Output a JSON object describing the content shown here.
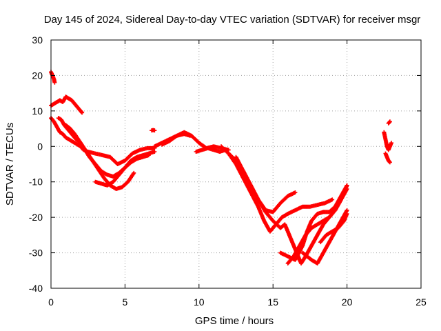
{
  "chart_data": {
    "type": "scatter",
    "title": "Day 145 of 2024, Sidereal Day-to-day VTEC variation (SDTVAR) for receiver msgr",
    "xlabel": "GPS time / hours",
    "ylabel": "SDTVAR / TECUs",
    "xlim": [
      0,
      25
    ],
    "ylim": [
      -40,
      30
    ],
    "xticks": [
      "0",
      "5",
      "10",
      "15",
      "20",
      "25"
    ],
    "yticks": [
      "30",
      "20",
      "10",
      "0",
      "-10",
      "-20",
      "-30",
      "-40"
    ],
    "grid": true,
    "marker_color": "#ff0000",
    "series": [
      {
        "x": [
          0.0,
          0.05,
          0.1,
          0.15,
          0.2,
          0.25
        ],
        "y": [
          21,
          20.5,
          20,
          19.5,
          19,
          18
        ]
      },
      {
        "x": [
          0.0,
          0.2,
          0.4,
          0.6,
          0.8,
          1.0,
          1.2,
          1.4,
          1.6,
          1.8,
          2.0,
          2.1
        ],
        "y": [
          11.5,
          12,
          12.5,
          13,
          12.5,
          14,
          13.5,
          13,
          12,
          11,
          10,
          9.5
        ]
      },
      {
        "x": [
          0.0,
          0.2,
          0.4,
          0.6,
          0.8,
          1.0,
          1.2,
          1.4,
          1.6,
          1.8,
          2.0,
          2.2,
          2.5,
          3.0,
          3.5,
          4.0,
          4.5,
          5.0,
          5.5,
          6.0,
          6.5,
          7.0
        ],
        "y": [
          8,
          7,
          5.5,
          4,
          3.5,
          2.5,
          2,
          1.5,
          1,
          0.5,
          0,
          -1,
          -1.5,
          -2,
          -2.5,
          -3,
          -5,
          -4,
          -2,
          -1,
          -0.5,
          -0.5
        ]
      },
      {
        "x": [
          0.5,
          0.7,
          0.9,
          1.1,
          1.3,
          1.5,
          1.7,
          2.0,
          2.3,
          2.6,
          3.0,
          3.4,
          3.8,
          4.2,
          4.6,
          5.0,
          5.4,
          5.8,
          6.2,
          6.6
        ],
        "y": [
          8,
          7.5,
          6,
          5,
          4,
          3,
          2,
          1,
          -1,
          -3,
          -5,
          -7,
          -8,
          -8.5,
          -7.5,
          -6,
          -4.5,
          -3.5,
          -3,
          -2.5
        ]
      },
      {
        "x": [
          1.0,
          1.3,
          1.6,
          2.0,
          2.4,
          2.8,
          3.2,
          3.6,
          4.0,
          4.4,
          4.8,
          5.2,
          5.6
        ],
        "y": [
          6,
          5,
          3.5,
          1,
          -1.5,
          -4,
          -6.5,
          -9,
          -11,
          -12,
          -11.5,
          -10,
          -7.5
        ]
      },
      {
        "x": [
          3.0,
          3.4,
          3.8,
          4.2,
          4.6,
          5.0,
          5.4,
          5.8,
          6.2,
          6.6,
          7.0
        ],
        "y": [
          -10,
          -10.5,
          -11,
          -10,
          -8,
          -6,
          -4,
          -3,
          -2.5,
          -2,
          -1.5
        ]
      },
      {
        "x": [
          6.8,
          6.9,
          7.0
        ],
        "y": [
          4.5,
          4.6,
          4.5
        ]
      },
      {
        "x": [
          7.0,
          7.5,
          8.0,
          8.5,
          9.0,
          9.5,
          10.0,
          10.5,
          11.0,
          11.5,
          12.0
        ],
        "y": [
          0,
          1,
          2,
          3,
          4,
          3,
          1,
          -0.5,
          0,
          -0.5,
          -1
        ]
      },
      {
        "x": [
          7.5,
          8.0,
          8.5,
          9.0,
          9.4
        ],
        "y": [
          0.5,
          1.5,
          3,
          3.5,
          3
        ]
      },
      {
        "x": [
          9.8,
          10.2,
          10.6,
          11.0,
          11.4,
          11.8
        ],
        "y": [
          -1.5,
          -1,
          -0.5,
          -1,
          -1.5,
          -1
        ]
      },
      {
        "x": [
          11.5,
          12.0,
          12.5,
          13.0,
          13.5,
          14.0,
          14.5,
          15.0,
          15.5,
          16.0,
          16.5
        ],
        "y": [
          0,
          -2,
          -4,
          -7,
          -11,
          -15,
          -18,
          -18.5,
          -16,
          -14,
          -13
        ]
      },
      {
        "x": [
          12.0,
          12.5,
          13.0,
          13.5,
          14.0,
          14.4,
          14.8,
          15.2,
          15.6,
          16.0,
          16.5,
          17.0,
          17.5,
          18.0,
          18.5,
          19.0
        ],
        "y": [
          -2,
          -5,
          -9,
          -13,
          -17,
          -21,
          -24,
          -22,
          -20,
          -19,
          -18,
          -17,
          -17,
          -16.5,
          -16,
          -15
        ]
      },
      {
        "x": [
          12.5,
          13.0,
          13.5,
          14.0,
          14.5,
          15.0,
          15.5,
          15.8,
          16.0,
          16.3,
          16.6,
          16.9,
          17.2,
          17.6,
          18.0,
          18.4,
          18.8,
          19.2,
          19.6,
          20.0
        ],
        "y": [
          -3,
          -7,
          -11,
          -15,
          -18.5,
          -21,
          -23,
          -22,
          -24,
          -27,
          -30,
          -33,
          -31,
          -28,
          -25,
          -22,
          -20,
          -18,
          -15,
          -11
        ]
      },
      {
        "x": [
          15.5,
          16.0,
          16.5,
          17.0,
          17.3,
          17.6,
          18.0,
          18.4,
          18.8,
          19.2,
          19.6,
          20.0
        ],
        "y": [
          -30,
          -31,
          -32,
          -28,
          -24,
          -21,
          -19,
          -18.5,
          -18.5,
          -17,
          -14,
          -11
        ]
      },
      {
        "x": [
          16.0,
          16.4,
          16.8,
          17.2,
          17.6,
          18.0,
          18.4,
          18.8,
          19.2,
          19.6,
          20.0
        ],
        "y": [
          -33,
          -31,
          -28,
          -25,
          -23,
          -22,
          -21,
          -20,
          -18,
          -15,
          -12
        ]
      },
      {
        "x": [
          17.0,
          17.3,
          17.6,
          18.0,
          18.4,
          18.8,
          19.2,
          19.6,
          20.0
        ],
        "y": [
          -30,
          -31,
          -32,
          -33,
          -30,
          -27,
          -24,
          -21,
          -18
        ]
      },
      {
        "x": [
          18.2,
          18.6,
          19.0,
          19.4,
          19.8,
          20.0
        ],
        "y": [
          -27,
          -25,
          -24,
          -23,
          -21,
          -19
        ]
      },
      {
        "x": [
          22.5,
          22.6,
          22.7,
          22.8,
          22.9,
          23.0
        ],
        "y": [
          4,
          2,
          0,
          -1,
          0,
          1
        ]
      },
      {
        "x": [
          22.6,
          22.7,
          22.8,
          22.9
        ],
        "y": [
          -2,
          -3,
          -4,
          -4.5
        ]
      },
      {
        "x": [
          22.8,
          22.9
        ],
        "y": [
          6.5,
          7
        ]
      }
    ]
  }
}
